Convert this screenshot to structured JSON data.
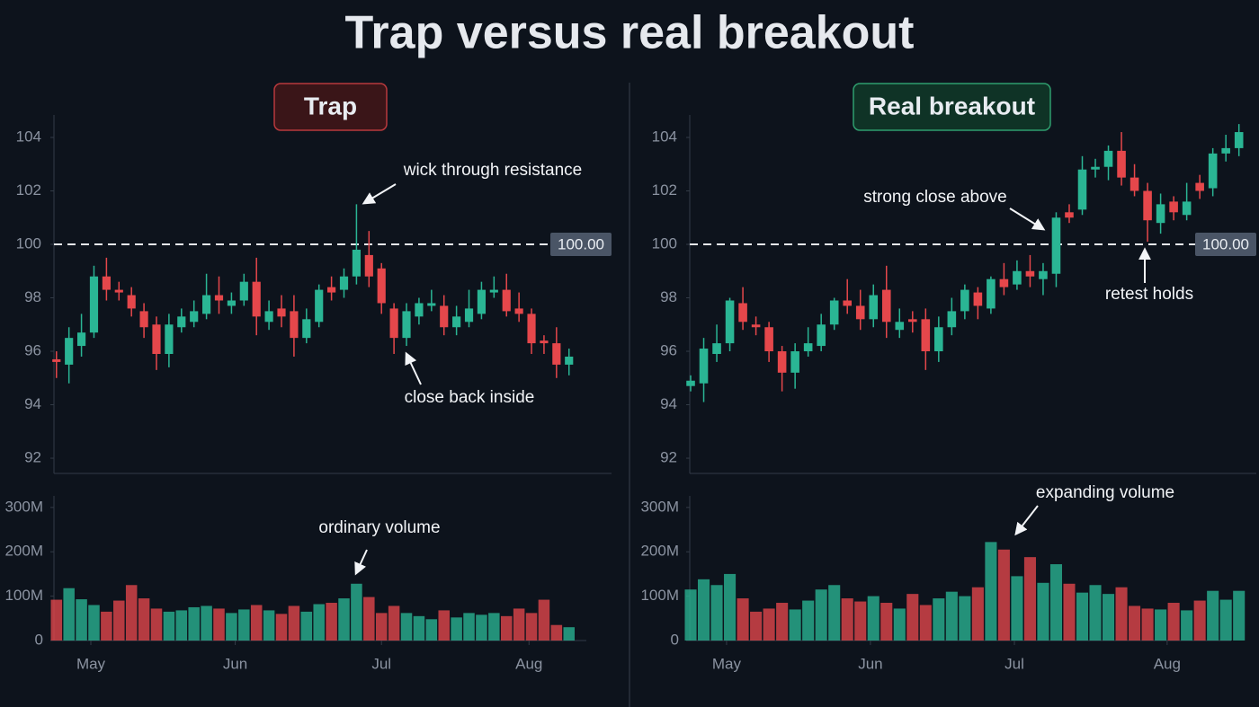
{
  "title": "Trap versus real breakout",
  "chart_data": [
    {
      "type": "candlestick",
      "title": "Trap",
      "up_color": "#2ab594",
      "down_color": "#e5474b",
      "open": [
        95.7,
        95.5,
        96.2,
        96.7,
        98.8,
        98.3,
        98.1,
        97.5,
        97.0,
        95.9,
        96.9,
        97.1,
        97.4,
        98.1,
        97.7,
        97.9,
        98.6,
        97.1,
        97.6,
        97.5,
        96.5,
        97.1,
        98.4,
        98.3,
        98.8,
        99.6,
        99.1,
        97.6,
        96.5,
        97.3,
        97.7,
        97.7,
        96.9,
        97.1,
        97.4,
        98.2,
        98.3,
        97.6,
        97.4,
        96.4,
        96.3,
        95.5
      ],
      "high": [
        96.0,
        96.9,
        97.4,
        99.2,
        99.5,
        98.6,
        98.4,
        97.8,
        97.3,
        97.4,
        97.6,
        97.9,
        98.9,
        98.8,
        98.2,
        98.9,
        99.5,
        97.9,
        98.1,
        98.1,
        97.6,
        98.5,
        98.8,
        99.1,
        101.5,
        100.5,
        99.3,
        97.8,
        97.8,
        98.0,
        98.3,
        98.1,
        97.7,
        98.3,
        98.6,
        98.8,
        98.9,
        98.2,
        97.6,
        96.6,
        96.9,
        96.1
      ],
      "low": [
        95.0,
        94.8,
        95.8,
        96.5,
        97.9,
        97.9,
        97.3,
        96.5,
        95.3,
        95.4,
        96.7,
        96.9,
        97.2,
        97.4,
        97.4,
        97.7,
        96.6,
        96.8,
        96.9,
        95.8,
        96.3,
        96.9,
        97.9,
        98.0,
        98.5,
        98.4,
        97.4,
        95.9,
        96.2,
        97.0,
        97.5,
        96.6,
        96.6,
        96.9,
        97.2,
        98.0,
        97.3,
        97.1,
        95.9,
        95.9,
        95.0,
        95.1
      ],
      "close": [
        95.6,
        96.5,
        96.7,
        98.8,
        98.3,
        98.2,
        97.6,
        96.9,
        95.9,
        97.0,
        97.3,
        97.5,
        98.1,
        97.9,
        97.9,
        98.6,
        97.3,
        97.5,
        97.3,
        96.5,
        97.2,
        98.3,
        98.2,
        98.8,
        99.8,
        98.8,
        97.8,
        96.5,
        97.5,
        97.8,
        97.8,
        96.9,
        97.3,
        97.6,
        98.3,
        98.3,
        97.5,
        97.4,
        96.3,
        96.3,
        95.5,
        95.8
      ],
      "xlim": [
        -0.2,
        44.4
      ],
      "xticks": [
        {
          "value": 2.75,
          "label": "May"
        },
        {
          "value": 14.3,
          "label": "Jun"
        },
        {
          "value": 26.0,
          "label": "Jul"
        },
        {
          "value": 37.8,
          "label": "Aug"
        }
      ],
      "ylim": [
        91.43,
        104.84
      ],
      "yticks": [
        92,
        94,
        96,
        98,
        100,
        102,
        104
      ],
      "resistance": {
        "value": 100,
        "label": "100.00"
      },
      "annotations": [
        "wick through resistance",
        "close back inside",
        "ordinary volume"
      ],
      "volume": {
        "values": [
          92000000,
          118000000,
          93000000,
          80000000,
          65000000,
          90000000,
          125000000,
          95000000,
          72000000,
          65000000,
          68000000,
          75000000,
          78000000,
          72000000,
          62000000,
          70000000,
          80000000,
          68000000,
          60000000,
          78000000,
          65000000,
          82000000,
          85000000,
          95000000,
          128000000,
          98000000,
          62000000,
          78000000,
          62000000,
          55000000,
          48000000,
          68000000,
          52000000,
          62000000,
          58000000,
          62000000,
          55000000,
          72000000,
          62000000,
          92000000,
          35000000,
          30000000
        ],
        "ylim": [
          0,
          326000000
        ],
        "yticks": [
          0,
          {
            "value": 100000000,
            "label": "100M"
          },
          {
            "value": 200000000,
            "label": "200M"
          },
          {
            "value": 300000000,
            "label": "300M"
          }
        ]
      }
    },
    {
      "type": "candlestick",
      "title": "Real breakout",
      "up_color": "#2ab594",
      "down_color": "#e5474b",
      "open": [
        94.7,
        94.8,
        95.9,
        96.3,
        97.8,
        97.0,
        96.9,
        96.0,
        95.2,
        96.0,
        96.2,
        97.0,
        97.9,
        97.7,
        97.2,
        98.3,
        96.8,
        97.2,
        97.2,
        96.0,
        96.9,
        97.5,
        98.2,
        97.6,
        98.7,
        98.5,
        99.0,
        98.7,
        98.9,
        101.2,
        101.3,
        102.8,
        102.9,
        103.5,
        102.5,
        102.0,
        100.8,
        101.6,
        101.1,
        102.3,
        102.1,
        103.4,
        103.6
      ],
      "high": [
        95.1,
        96.5,
        97.0,
        98.0,
        98.4,
        97.3,
        97.1,
        96.2,
        96.3,
        96.9,
        97.4,
        98.0,
        98.7,
        98.3,
        98.5,
        99.2,
        97.6,
        97.5,
        97.6,
        97.3,
        98.0,
        98.5,
        98.4,
        98.8,
        99.3,
        99.4,
        99.6,
        99.3,
        101.2,
        101.5,
        103.3,
        103.2,
        103.7,
        104.2,
        103.0,
        102.3,
        101.9,
        101.8,
        102.3,
        102.6,
        103.6,
        104.1,
        104.5
      ],
      "low": [
        94.5,
        94.1,
        95.6,
        96.0,
        96.8,
        96.6,
        95.6,
        94.5,
        94.6,
        95.8,
        96.0,
        96.8,
        97.4,
        96.8,
        96.9,
        96.5,
        96.5,
        96.7,
        95.3,
        95.6,
        96.6,
        97.2,
        97.2,
        97.4,
        98.1,
        98.3,
        98.4,
        98.1,
        98.4,
        100.8,
        101.1,
        102.5,
        102.4,
        102.2,
        101.8,
        100.1,
        100.4,
        100.9,
        100.9,
        101.7,
        101.8,
        103.1,
        103.3
      ],
      "close": [
        94.9,
        96.1,
        96.3,
        97.9,
        97.1,
        96.9,
        96.0,
        95.2,
        96.0,
        96.3,
        97.0,
        97.9,
        97.7,
        97.2,
        98.1,
        97.1,
        97.1,
        97.1,
        96.0,
        96.9,
        97.5,
        98.3,
        97.7,
        98.7,
        98.4,
        99.0,
        98.8,
        99.0,
        101.0,
        101.0,
        102.8,
        102.9,
        103.5,
        102.5,
        102.0,
        100.9,
        101.5,
        101.2,
        101.6,
        102.0,
        103.4,
        103.6,
        104.2
      ],
      "xlim": [
        -0.07,
        43.33
      ],
      "xticks": [
        {
          "value": 2.75,
          "label": "May"
        },
        {
          "value": 13.77,
          "label": "Jun"
        },
        {
          "value": 24.8,
          "label": "Jul"
        },
        {
          "value": 36.5,
          "label": "Aug"
        }
      ],
      "ylim": [
        91.43,
        104.84
      ],
      "yticks": [
        92,
        94,
        96,
        98,
        100,
        102,
        104
      ],
      "resistance": {
        "value": 100,
        "label": "100.00"
      },
      "annotations": [
        "strong close above",
        "retest holds",
        "expanding volume"
      ],
      "volume": {
        "values": [
          115000000,
          138000000,
          125000000,
          150000000,
          95000000,
          65000000,
          72000000,
          85000000,
          70000000,
          90000000,
          115000000,
          125000000,
          95000000,
          88000000,
          100000000,
          85000000,
          72000000,
          105000000,
          80000000,
          95000000,
          110000000,
          100000000,
          120000000,
          222000000,
          205000000,
          145000000,
          188000000,
          130000000,
          172000000,
          128000000,
          108000000,
          125000000,
          105000000,
          120000000,
          78000000,
          72000000,
          70000000,
          85000000,
          68000000,
          90000000,
          112000000,
          92000000,
          112000000
        ],
        "ylim": [
          0,
          326000000
        ],
        "yticks": [
          0,
          {
            "value": 100000000,
            "label": "100M"
          },
          {
            "value": 200000000,
            "label": "200M"
          },
          {
            "value": 300000000,
            "label": "300M"
          }
        ]
      }
    }
  ]
}
